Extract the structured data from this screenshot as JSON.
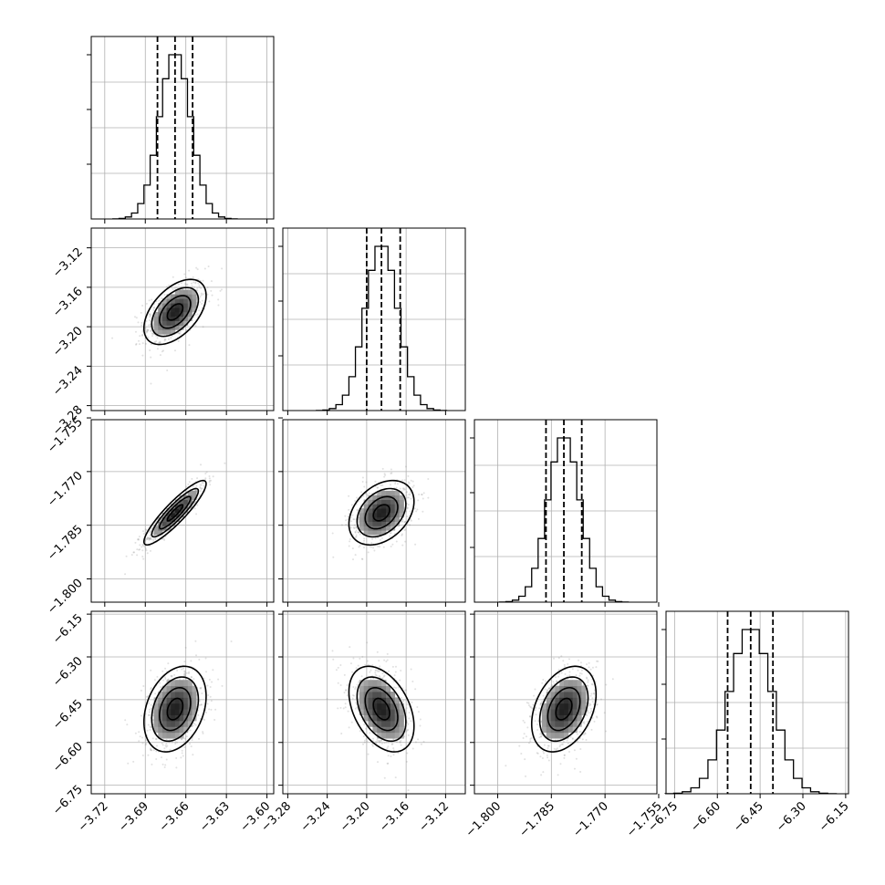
{
  "chart_data": {
    "type": "corner",
    "parameters": [
      {
        "range": [
          -3.73,
          -3.595
        ],
        "ticks": [
          -3.72,
          -3.69,
          -3.66,
          -3.63,
          -3.6
        ],
        "tick_labels": [
          "−3.72",
          "−3.69",
          "−3.66",
          "−3.63",
          "−3.60"
        ],
        "quantiles": [
          -3.681,
          -3.668,
          -3.655
        ],
        "median": -3.668,
        "sigma": 0.0115
      },
      {
        "range": [
          -3.285,
          -3.1
        ],
        "ticks": [
          -3.28,
          -3.24,
          -3.2,
          -3.16,
          -3.12
        ],
        "tick_labels": [
          "−3.28",
          "−3.24",
          "−3.20",
          "−3.16",
          "−3.12"
        ],
        "quantiles": [
          -3.2,
          -3.185,
          -3.166
        ],
        "median": -3.185,
        "sigma": 0.0165
      },
      {
        "range": [
          -1.8065,
          -1.7555
        ],
        "ticks": [
          -1.8,
          -1.785,
          -1.77,
          -1.755
        ],
        "tick_labels": [
          "−1.800",
          "−1.785",
          "−1.770",
          "−1.755"
        ],
        "quantiles": [
          -1.7865,
          -1.7815,
          -1.7765
        ],
        "median": -1.7815,
        "sigma": 0.0045
      },
      {
        "range": [
          -6.78,
          -6.14
        ],
        "ticks": [
          -6.75,
          -6.6,
          -6.45,
          -6.3,
          -6.15
        ],
        "tick_labels": [
          "−6.75",
          "−6.60",
          "−6.45",
          "−6.30",
          "−6.15"
        ],
        "quantiles": [
          -6.564,
          -6.483,
          -6.405
        ],
        "median": -6.483,
        "sigma": 0.075
      }
    ],
    "correlations": [
      {
        "i": 1,
        "j": 0,
        "rho": 0.5
      },
      {
        "i": 2,
        "j": 0,
        "rho": 0.9
      },
      {
        "i": 2,
        "j": 1,
        "rho": 0.35
      },
      {
        "i": 3,
        "j": 0,
        "rho": 0.3
      },
      {
        "i": 3,
        "j": 1,
        "rho": -0.4
      },
      {
        "i": 3,
        "j": 2,
        "rho": 0.35
      }
    ],
    "histogram_bins": 20,
    "contour_levels_sigma": [
      0.5,
      1.0,
      1.5,
      2.0
    ],
    "grid": true,
    "line_color": "#000000",
    "sample_color": "#888888"
  }
}
